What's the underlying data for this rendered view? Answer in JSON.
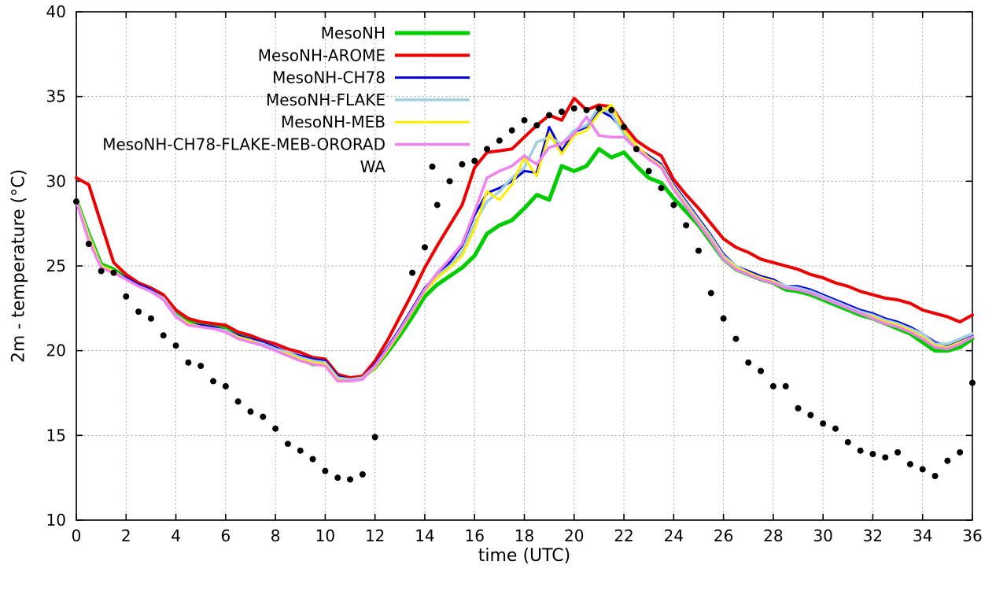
{
  "chart_data": {
    "type": "line",
    "title": "",
    "xlabel": "time (UTC)",
    "ylabel": "2m - temperature (°C)",
    "xlim": [
      0,
      36
    ],
    "ylim": [
      10,
      40
    ],
    "xticks": [
      0,
      2,
      4,
      6,
      8,
      10,
      12,
      14,
      16,
      18,
      20,
      22,
      24,
      26,
      28,
      30,
      32,
      34,
      36
    ],
    "yticks": [
      10,
      15,
      20,
      25,
      30,
      35,
      40
    ],
    "grid": "dotted",
    "legend_position": "top-center-inside",
    "x_start": 0,
    "x_step": 0.5,
    "series": [
      {
        "name": "MesoNH",
        "color": "#00cc00",
        "width": 5,
        "style": "line",
        "values": [
          28.9,
          26.9,
          25.1,
          24.8,
          24.3,
          23.9,
          23.6,
          23.2,
          22.2,
          21.7,
          21.5,
          21.4,
          21.3,
          20.9,
          20.7,
          20.4,
          20.1,
          19.8,
          19.5,
          19.2,
          19.2,
          18.4,
          18.3,
          18.4,
          19.0,
          19.9,
          20.9,
          22.0,
          23.2,
          23.9,
          24.4,
          24.9,
          25.6,
          26.9,
          27.4,
          27.7,
          28.4,
          29.2,
          28.9,
          30.9,
          30.6,
          30.9,
          31.9,
          31.4,
          31.7,
          30.9,
          30.2,
          29.9,
          29.0,
          28.2,
          27.4,
          26.4,
          25.4,
          24.8,
          24.5,
          24.2,
          24.0,
          23.6,
          23.5,
          23.3,
          23.0,
          22.7,
          22.4,
          22.1,
          21.9,
          21.6,
          21.3,
          21.0,
          20.5,
          20.0,
          20.0,
          20.2,
          20.7
        ]
      },
      {
        "name": "MesoNH-AROME",
        "color": "#ee0000",
        "width": 4,
        "style": "line",
        "values": [
          30.2,
          29.8,
          27.5,
          25.2,
          24.5,
          24.0,
          23.7,
          23.3,
          22.4,
          21.9,
          21.7,
          21.6,
          21.5,
          21.1,
          20.9,
          20.6,
          20.4,
          20.1,
          19.9,
          19.6,
          19.5,
          18.6,
          18.4,
          18.5,
          19.4,
          20.6,
          22.0,
          23.4,
          24.9,
          26.2,
          27.4,
          28.6,
          30.8,
          31.7,
          31.8,
          31.9,
          32.6,
          33.3,
          33.9,
          33.6,
          34.9,
          34.2,
          34.5,
          34.4,
          33.3,
          32.4,
          31.9,
          31.5,
          30.1,
          29.2,
          28.4,
          27.5,
          26.6,
          26.1,
          25.8,
          25.4,
          25.2,
          25.0,
          24.8,
          24.5,
          24.3,
          24.0,
          23.8,
          23.5,
          23.3,
          23.1,
          23.0,
          22.8,
          22.4,
          22.2,
          22.0,
          21.7,
          22.1
        ]
      },
      {
        "name": "MesoNH-CH78",
        "color": "#0000dd",
        "width": 3,
        "style": "line",
        "values": [
          28.9,
          26.8,
          25.0,
          24.7,
          24.3,
          23.9,
          23.6,
          23.1,
          22.1,
          21.6,
          21.5,
          21.4,
          21.2,
          20.9,
          20.7,
          20.5,
          20.2,
          19.9,
          19.7,
          19.5,
          19.4,
          18.5,
          18.3,
          18.4,
          19.2,
          20.2,
          21.3,
          22.5,
          23.7,
          24.5,
          25.2,
          26.2,
          28.0,
          29.3,
          29.6,
          30.0,
          30.6,
          30.5,
          33.2,
          31.8,
          32.9,
          33.2,
          34.2,
          33.8,
          33.0,
          32.0,
          31.5,
          31.0,
          29.8,
          28.8,
          27.8,
          26.8,
          25.7,
          25.0,
          24.7,
          24.4,
          24.2,
          23.8,
          23.8,
          23.6,
          23.3,
          23.0,
          22.7,
          22.4,
          22.2,
          21.9,
          21.7,
          21.4,
          21.0,
          20.5,
          20.3,
          20.6,
          20.9
        ]
      },
      {
        "name": "MesoNH-FLAKE",
        "color": "#a0d0e0",
        "width": 3.5,
        "style": "line",
        "values": [
          28.9,
          26.8,
          25.0,
          24.7,
          24.2,
          23.8,
          23.5,
          23.1,
          22.1,
          21.6,
          21.4,
          21.3,
          21.2,
          20.8,
          20.6,
          20.4,
          20.1,
          19.9,
          19.6,
          19.4,
          19.3,
          18.4,
          18.3,
          18.4,
          19.1,
          20.1,
          21.2,
          22.4,
          23.6,
          24.4,
          25.0,
          25.8,
          27.5,
          28.8,
          29.4,
          30.2,
          30.8,
          32.3,
          32.6,
          32.2,
          33.0,
          33.3,
          34.4,
          34.0,
          32.8,
          32.0,
          31.4,
          30.9,
          29.7,
          28.7,
          27.7,
          26.7,
          25.6,
          25.0,
          24.6,
          24.3,
          24.1,
          23.8,
          23.7,
          23.5,
          23.2,
          22.9,
          22.6,
          22.3,
          22.1,
          21.8,
          21.6,
          21.3,
          21.0,
          20.4,
          20.4,
          20.7,
          21.0
        ]
      },
      {
        "name": "MesoNH-MEB",
        "color": "#ffee00",
        "width": 3,
        "style": "line",
        "values": [
          28.9,
          26.7,
          25.0,
          24.7,
          24.2,
          23.8,
          23.5,
          23.0,
          22.0,
          21.6,
          21.4,
          21.3,
          21.1,
          20.8,
          20.6,
          20.3,
          20.0,
          19.8,
          19.5,
          19.3,
          19.2,
          18.3,
          18.2,
          18.3,
          19.0,
          20.0,
          21.1,
          22.3,
          23.5,
          24.3,
          24.9,
          25.6,
          27.2,
          29.4,
          28.9,
          29.8,
          31.4,
          30.3,
          32.8,
          31.6,
          32.7,
          33.0,
          34.0,
          34.5,
          33.0,
          32.1,
          31.4,
          30.9,
          29.6,
          28.6,
          27.6,
          26.6,
          25.5,
          24.9,
          24.6,
          24.3,
          24.1,
          23.7,
          23.6,
          23.4,
          23.1,
          22.8,
          22.5,
          22.2,
          22.0,
          21.7,
          21.5,
          21.2,
          20.8,
          20.3,
          20.2,
          20.5,
          20.8
        ]
      },
      {
        "name": "MesoNH-CH78-FLAKE-MEB-ORORAD",
        "color": "#ee82ee",
        "width": 3.5,
        "style": "line",
        "values": [
          28.8,
          26.5,
          24.9,
          24.6,
          24.2,
          23.8,
          23.5,
          23.0,
          22.0,
          21.5,
          21.4,
          21.3,
          21.1,
          20.7,
          20.5,
          20.3,
          20.0,
          19.7,
          19.4,
          19.2,
          19.1,
          18.2,
          18.2,
          18.3,
          19.1,
          20.1,
          21.2,
          22.4,
          23.6,
          24.6,
          25.4,
          26.3,
          28.2,
          30.2,
          30.6,
          30.9,
          31.5,
          31.0,
          32.0,
          32.2,
          32.8,
          33.8,
          32.7,
          32.6,
          32.6,
          31.9,
          31.3,
          30.8,
          29.5,
          28.5,
          27.5,
          26.5,
          25.4,
          24.8,
          24.5,
          24.2,
          24.0,
          23.7,
          23.6,
          23.4,
          23.1,
          22.8,
          22.5,
          22.2,
          21.9,
          21.6,
          21.4,
          21.1,
          20.7,
          20.2,
          20.1,
          20.4,
          20.8
        ]
      },
      {
        "name": "WA",
        "color": "#000000",
        "style": "points",
        "point_size": 4,
        "points": [
          [
            0,
            28.8
          ],
          [
            0.5,
            26.3
          ],
          [
            1,
            24.7
          ],
          [
            1.5,
            24.6
          ],
          [
            2,
            23.2
          ],
          [
            2.5,
            22.3
          ],
          [
            3,
            21.9
          ],
          [
            3.5,
            20.9
          ],
          [
            4,
            20.3
          ],
          [
            4.5,
            19.3
          ],
          [
            5,
            19.1
          ],
          [
            5.5,
            18.2
          ],
          [
            6,
            17.9
          ],
          [
            6.5,
            17.0
          ],
          [
            7,
            16.4
          ],
          [
            7.5,
            16.1
          ],
          [
            8,
            15.4
          ],
          [
            8.5,
            14.5
          ],
          [
            9,
            14.1
          ],
          [
            9.5,
            13.6
          ],
          [
            10,
            12.9
          ],
          [
            10.5,
            12.5
          ],
          [
            11,
            12.4
          ],
          [
            11.5,
            12.7
          ],
          [
            12,
            14.9
          ],
          [
            13.5,
            24.6
          ],
          [
            14,
            26.1
          ],
          [
            14.5,
            28.6
          ],
          [
            15,
            30.0
          ],
          [
            15.5,
            31.0
          ],
          [
            16,
            31.2
          ],
          [
            16.5,
            31.9
          ],
          [
            17,
            32.4
          ],
          [
            17.5,
            33.0
          ],
          [
            18,
            33.6
          ],
          [
            18.5,
            33.3
          ],
          [
            19,
            33.9
          ],
          [
            19.5,
            34.1
          ],
          [
            20,
            34.3
          ],
          [
            20.5,
            34.2
          ],
          [
            21,
            34.3
          ],
          [
            21.5,
            34.2
          ],
          [
            22,
            33.2
          ],
          [
            22.5,
            31.9
          ],
          [
            23,
            30.6
          ],
          [
            23.5,
            29.6
          ],
          [
            24,
            28.6
          ],
          [
            24.5,
            27.4
          ],
          [
            25,
            25.9
          ],
          [
            25.5,
            23.4
          ],
          [
            26,
            21.9
          ],
          [
            26.5,
            20.7
          ],
          [
            27,
            19.3
          ],
          [
            27.5,
            18.8
          ],
          [
            28,
            17.9
          ],
          [
            28.5,
            17.9
          ],
          [
            29,
            16.6
          ],
          [
            29.5,
            16.2
          ],
          [
            30,
            15.7
          ],
          [
            30.5,
            15.4
          ],
          [
            31,
            14.6
          ],
          [
            31.5,
            14.1
          ],
          [
            32,
            13.9
          ],
          [
            32.5,
            13.7
          ],
          [
            33,
            14.0
          ],
          [
            33.5,
            13.3
          ],
          [
            34,
            13.0
          ],
          [
            34.5,
            12.6
          ],
          [
            35,
            13.5
          ],
          [
            35.5,
            14.0
          ],
          [
            36,
            18.1
          ]
        ]
      }
    ]
  }
}
